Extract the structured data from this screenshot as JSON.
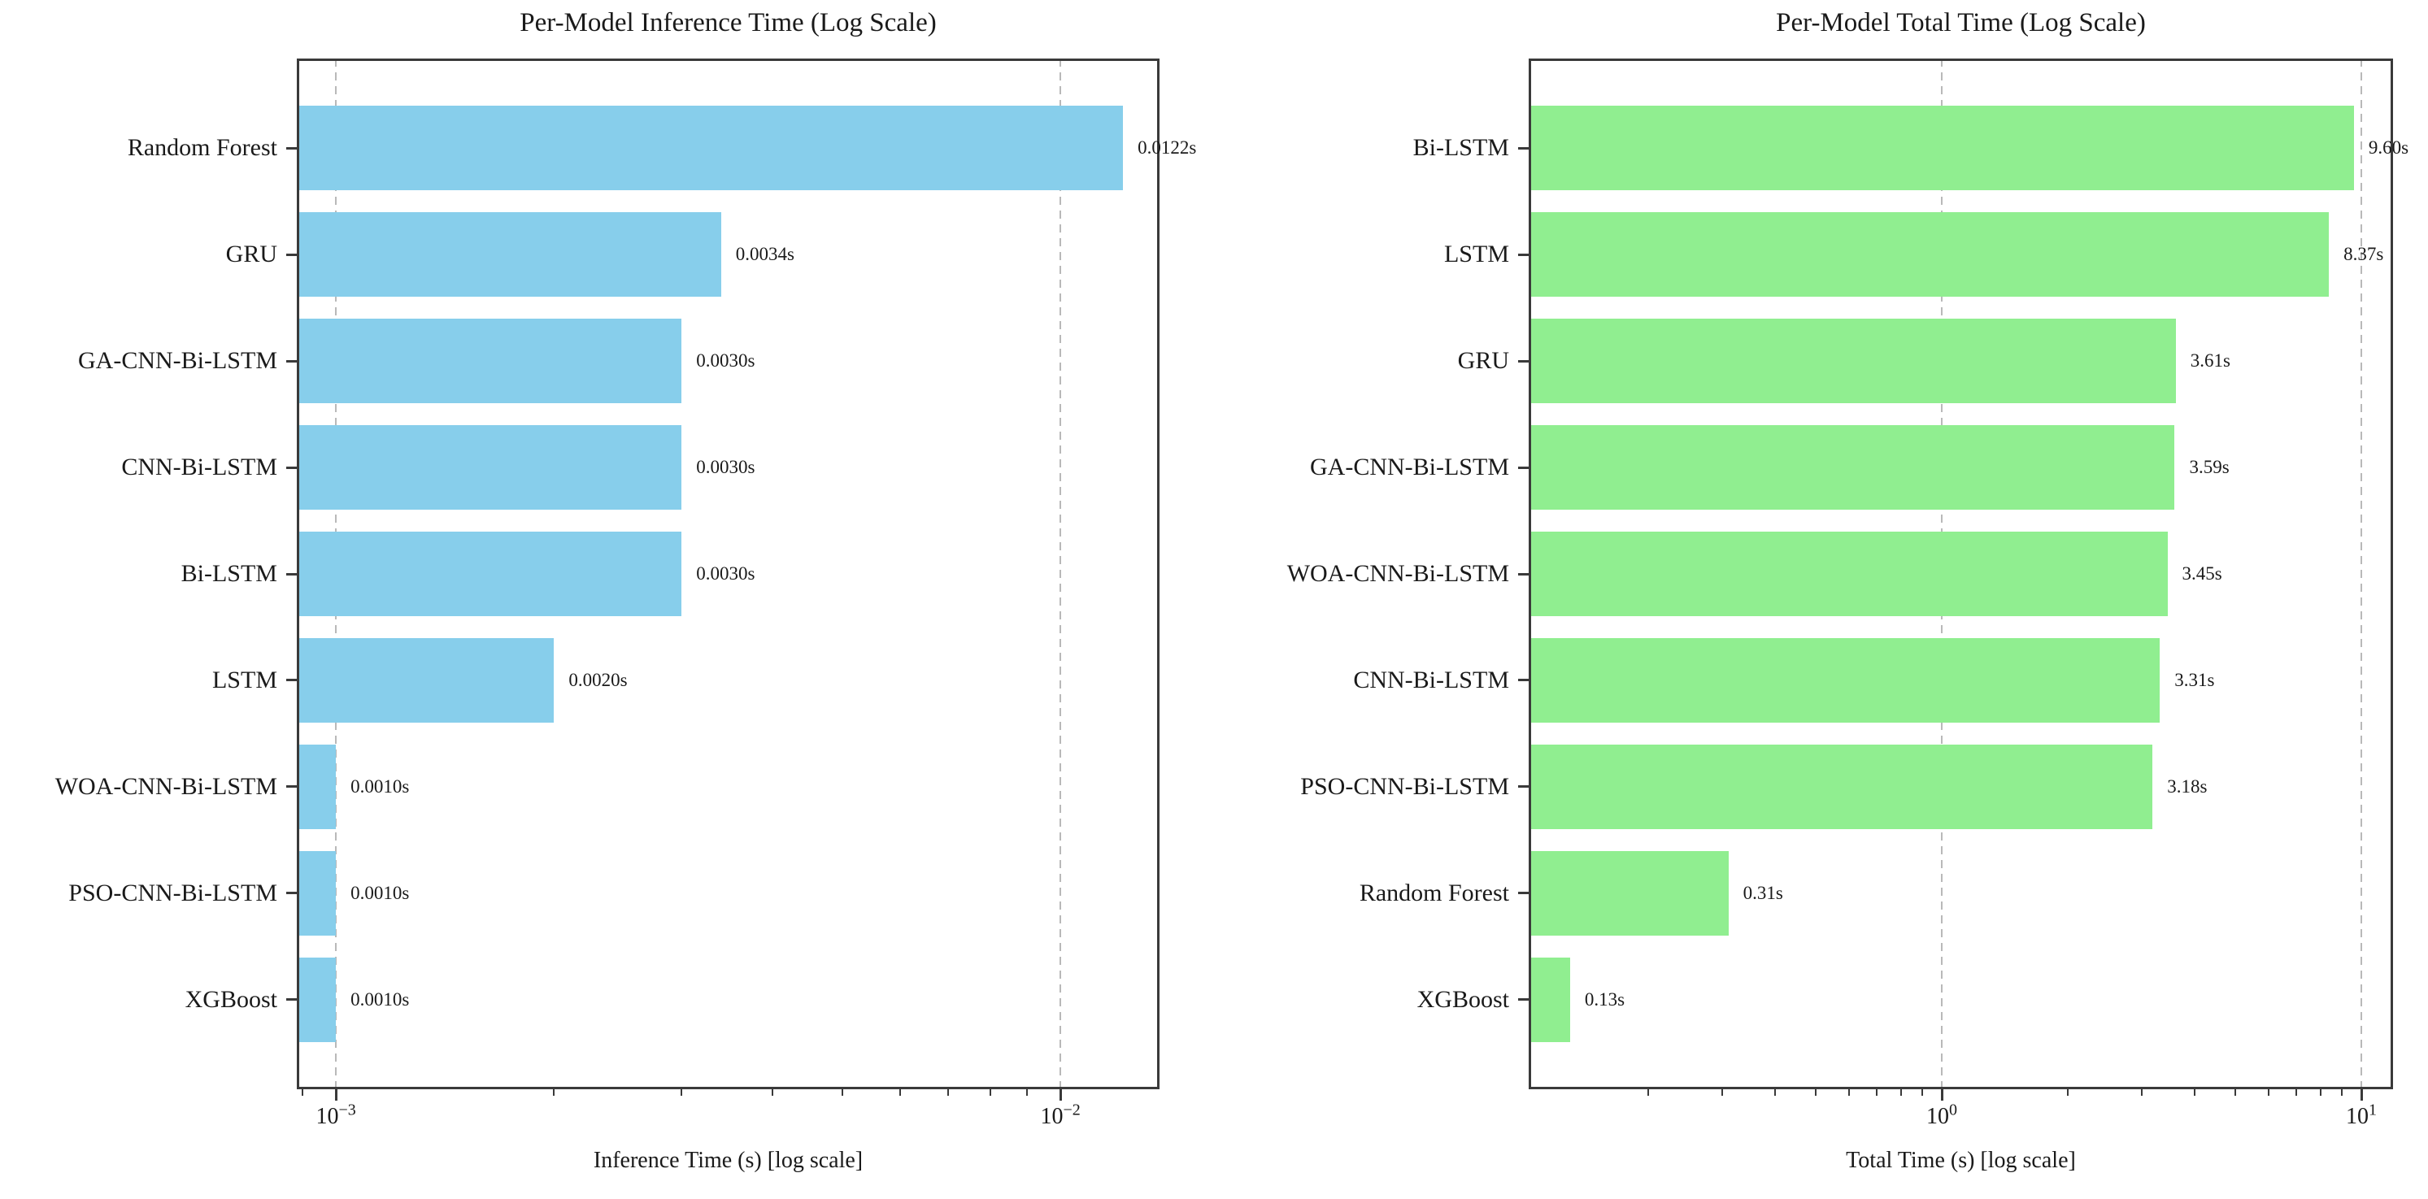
{
  "page": {
    "background": "#ffffff"
  },
  "chart_data": [
    {
      "type": "bar",
      "orientation": "horizontal",
      "title": "Per-Model Inference Time (Log Scale)",
      "xlabel": "Inference Time (s) [log scale]",
      "xscale": "log",
      "xlim": [
        0.000883,
        0.0137
      ],
      "bar_color": "#87CEEB",
      "grid": {
        "axis": "x",
        "style": "dashed",
        "color": "#b9b9b9"
      },
      "xticks": [
        {
          "value": 0.001,
          "exponent": -3
        },
        {
          "value": 0.01,
          "exponent": -2
        }
      ],
      "categories": [
        "Random Forest",
        "GRU",
        "GA-CNN-Bi-LSTM",
        "CNN-Bi-LSTM",
        "Bi-LSTM",
        "LSTM",
        "WOA-CNN-Bi-LSTM",
        "PSO-CNN-Bi-LSTM",
        "XGBoost"
      ],
      "values": [
        0.0122,
        0.0034,
        0.003,
        0.003,
        0.003,
        0.002,
        0.001,
        0.001,
        0.001
      ],
      "value_labels": [
        "0.0122s",
        "0.0034s",
        "0.0030s",
        "0.0030s",
        "0.0030s",
        "0.0020s",
        "0.0010s",
        "0.0010s",
        "0.0010s"
      ]
    },
    {
      "type": "bar",
      "orientation": "horizontal",
      "title": "Per-Model Total Time (Log Scale)",
      "xlabel": "Total Time (s) [log scale]",
      "xscale": "log",
      "xlim": [
        0.1036,
        11.9
      ],
      "bar_color": "#90EE90",
      "grid": {
        "axis": "x",
        "style": "dashed",
        "color": "#b9b9b9"
      },
      "xticks": [
        {
          "value": 1,
          "exponent": 0
        },
        {
          "value": 10,
          "exponent": 1
        }
      ],
      "categories": [
        "Bi-LSTM",
        "LSTM",
        "GRU",
        "GA-CNN-Bi-LSTM",
        "WOA-CNN-Bi-LSTM",
        "CNN-Bi-LSTM",
        "PSO-CNN-Bi-LSTM",
        "Random Forest",
        "XGBoost"
      ],
      "values": [
        9.6,
        8.37,
        3.61,
        3.59,
        3.45,
        3.31,
        3.18,
        0.31,
        0.13
      ],
      "value_labels": [
        "9.60s",
        "8.37s",
        "3.61s",
        "3.59s",
        "3.45s",
        "3.31s",
        "3.18s",
        "0.31s",
        "0.13s"
      ]
    }
  ]
}
